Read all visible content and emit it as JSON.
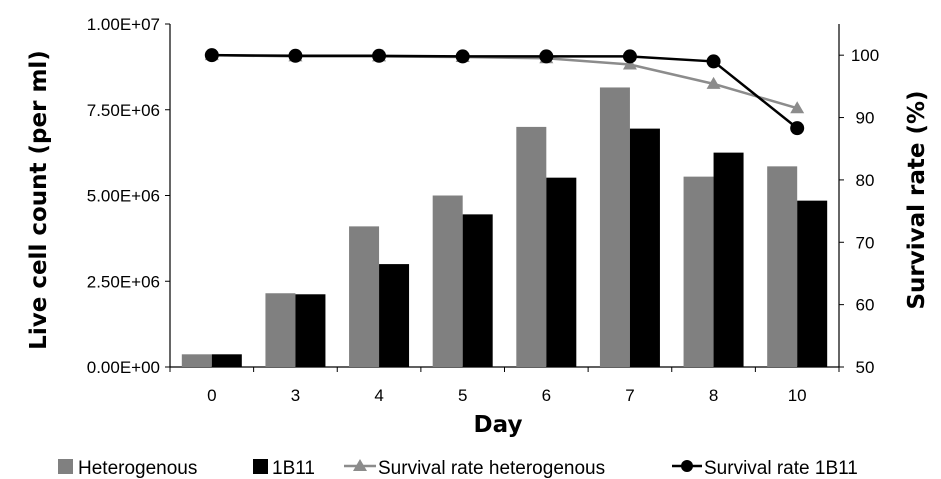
{
  "chart_data": {
    "type": "bar+line",
    "categories": [
      "0",
      "3",
      "4",
      "5",
      "6",
      "7",
      "8",
      "10"
    ],
    "xlabel": "Day",
    "ylabel": "Live cell count (per ml)",
    "y2label": "Survival rate (%)",
    "ylim": [
      0,
      10000000
    ],
    "y2lim": [
      50,
      105
    ],
    "yticks": [
      "0.00E+00",
      "2.50E+06",
      "5.00E+06",
      "7.50E+06",
      "1.00E+07"
    ],
    "y2ticks": [
      "50",
      "60",
      "70",
      "80",
      "90",
      "100"
    ],
    "grid": false,
    "legend_position": "bottom",
    "bars": [
      {
        "name": "Heterogenous",
        "color": "#808080",
        "values": [
          370000,
          2150000,
          4100000,
          5000000,
          7000000,
          8150000,
          5550000,
          5850000
        ]
      },
      {
        "name": "1B11",
        "color": "#000000",
        "values": [
          370000,
          2120000,
          3000000,
          4450000,
          5520000,
          6950000,
          6250000,
          4850000
        ]
      }
    ],
    "lines": [
      {
        "name": "Survival rate heterogenous",
        "color": "#8c8c8c",
        "marker": "triangle",
        "values": [
          100,
          99.8,
          99.8,
          99.7,
          99.5,
          98.5,
          95.4,
          91.5
        ]
      },
      {
        "name": "Survival rate 1B11",
        "color": "#000000",
        "marker": "circle",
        "values": [
          100,
          99.9,
          99.9,
          99.8,
          99.8,
          99.8,
          99.0,
          88.3
        ]
      }
    ]
  }
}
